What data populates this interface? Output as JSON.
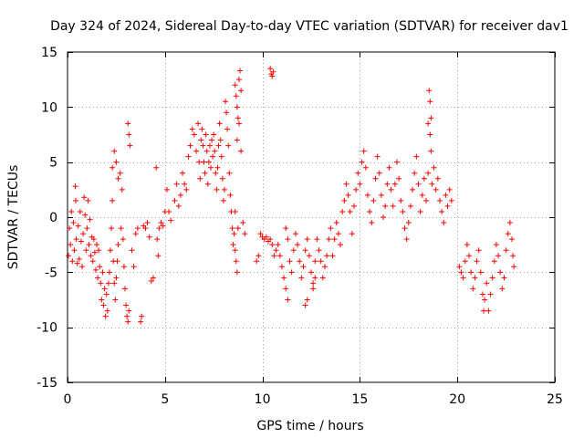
{
  "chart_data": {
    "type": "scatter",
    "title": "Day 324 of 2024, Sidereal Day-to-day VTEC variation (SDTVAR) for receiver dav1",
    "xlabel": "GPS time / hours",
    "ylabel": "SDTVAR / TECUs",
    "xlim": [
      0,
      25
    ],
    "ylim": [
      -15,
      15
    ],
    "xticks": [
      0,
      5,
      10,
      15,
      20,
      25
    ],
    "yticks": [
      -15,
      -10,
      -5,
      0,
      5,
      10,
      15
    ],
    "grid": true,
    "marker": "plus",
    "color": "#ff0000",
    "series": [
      {
        "name": "SDTVAR",
        "points": [
          [
            0.05,
            -3.5
          ],
          [
            0.1,
            -1.0
          ],
          [
            0.15,
            -2.5
          ],
          [
            0.2,
            0.5
          ],
          [
            0.25,
            -4.0
          ],
          [
            0.3,
            -0.5
          ],
          [
            0.35,
            -3.0
          ],
          [
            0.4,
            2.8
          ],
          [
            0.42,
            1.5
          ],
          [
            0.45,
            -2.0
          ],
          [
            0.5,
            -4.2
          ],
          [
            0.55,
            -0.8
          ],
          [
            0.6,
            -3.8
          ],
          [
            0.65,
            0.5
          ],
          [
            0.7,
            -2.2
          ],
          [
            0.75,
            -4.5
          ],
          [
            0.8,
            -1.5
          ],
          [
            0.85,
            1.8
          ],
          [
            0.9,
            0.2
          ],
          [
            0.95,
            -3.0
          ],
          [
            1.0,
            -1.0
          ],
          [
            1.05,
            1.5
          ],
          [
            1.1,
            -2.5
          ],
          [
            1.15,
            -0.2
          ],
          [
            1.2,
            -3.5
          ],
          [
            1.25,
            -1.8
          ],
          [
            1.3,
            -4.0
          ],
          [
            1.35,
            -2.0
          ],
          [
            1.4,
            -3.2
          ],
          [
            1.45,
            -4.8
          ],
          [
            1.5,
            -2.5
          ],
          [
            1.55,
            -5.5
          ],
          [
            1.6,
            -3.0
          ],
          [
            1.65,
            -4.5
          ],
          [
            1.7,
            -6.0
          ],
          [
            1.75,
            -7.5
          ],
          [
            1.8,
            -5.0
          ],
          [
            1.85,
            -8.0
          ],
          [
            1.9,
            -6.5
          ],
          [
            1.95,
            -9.0
          ],
          [
            2.0,
            -7.0
          ],
          [
            2.05,
            -8.5
          ],
          [
            2.1,
            -6.0
          ],
          [
            2.15,
            -5.0
          ],
          [
            2.2,
            -3.0
          ],
          [
            2.25,
            -1.0
          ],
          [
            2.3,
            1.5
          ],
          [
            2.35,
            -4.0
          ],
          [
            2.4,
            -6.0
          ],
          [
            2.45,
            -7.5
          ],
          [
            2.5,
            -5.5
          ],
          [
            2.55,
            -4.0
          ],
          [
            2.6,
            -2.5
          ],
          [
            2.3,
            4.5
          ],
          [
            2.4,
            6.0
          ],
          [
            2.5,
            5.0
          ],
          [
            2.6,
            3.5
          ],
          [
            2.7,
            4.0
          ],
          [
            2.8,
            2.5
          ],
          [
            2.75,
            -1.0
          ],
          [
            2.85,
            -2.0
          ],
          [
            2.9,
            -4.5
          ],
          [
            2.95,
            -6.5
          ],
          [
            3.0,
            -8.0
          ],
          [
            3.05,
            -9.0
          ],
          [
            3.1,
            -9.5
          ],
          [
            3.15,
            -8.5
          ],
          [
            3.1,
            8.5
          ],
          [
            3.15,
            7.5
          ],
          [
            3.2,
            6.5
          ],
          [
            3.3,
            -3.0
          ],
          [
            3.4,
            -4.5
          ],
          [
            3.5,
            -1.5
          ],
          [
            3.6,
            -1.0
          ],
          [
            3.75,
            -9.5
          ],
          [
            3.8,
            -9.0
          ],
          [
            3.9,
            -0.8
          ],
          [
            4.0,
            -1.0
          ],
          [
            4.1,
            -0.5
          ],
          [
            4.2,
            -1.8
          ],
          [
            4.3,
            -5.8
          ],
          [
            4.4,
            -5.5
          ],
          [
            4.55,
            4.5
          ],
          [
            4.6,
            -2.0
          ],
          [
            4.65,
            -3.5
          ],
          [
            4.7,
            -1.0
          ],
          [
            4.8,
            -0.5
          ],
          [
            4.9,
            -0.8
          ],
          [
            5.0,
            0.5
          ],
          [
            5.1,
            2.5
          ],
          [
            5.2,
            0.5
          ],
          [
            5.3,
            -0.3
          ],
          [
            5.5,
            1.5
          ],
          [
            5.6,
            3.0
          ],
          [
            5.7,
            1.0
          ],
          [
            5.8,
            2.0
          ],
          [
            5.9,
            4.0
          ],
          [
            6.0,
            3.0
          ],
          [
            6.1,
            2.5
          ],
          [
            6.2,
            5.5
          ],
          [
            6.3,
            6.5
          ],
          [
            6.4,
            8.0
          ],
          [
            6.5,
            7.5
          ],
          [
            6.6,
            6.0
          ],
          [
            6.7,
            8.5
          ],
          [
            6.75,
            5.0
          ],
          [
            6.8,
            3.5
          ],
          [
            6.85,
            7.0
          ],
          [
            6.9,
            8.0
          ],
          [
            6.95,
            6.5
          ],
          [
            7.0,
            5.0
          ],
          [
            7.05,
            4.0
          ],
          [
            7.1,
            7.5
          ],
          [
            7.15,
            6.0
          ],
          [
            7.2,
            3.0
          ],
          [
            7.25,
            5.0
          ],
          [
            7.3,
            6.5
          ],
          [
            7.35,
            4.5
          ],
          [
            7.4,
            7.0
          ],
          [
            7.45,
            5.5
          ],
          [
            7.5,
            7.5
          ],
          [
            7.55,
            6.0
          ],
          [
            7.6,
            4.0
          ],
          [
            7.65,
            2.5
          ],
          [
            7.7,
            4.5
          ],
          [
            7.75,
            6.5
          ],
          [
            7.8,
            8.5
          ],
          [
            7.85,
            7.0
          ],
          [
            7.9,
            5.5
          ],
          [
            7.95,
            3.5
          ],
          [
            8.0,
            1.5
          ],
          [
            8.05,
            2.5
          ],
          [
            8.1,
            10.5
          ],
          [
            8.15,
            9.5
          ],
          [
            8.2,
            8.0
          ],
          [
            8.25,
            6.5
          ],
          [
            8.3,
            4.0
          ],
          [
            8.35,
            2.0
          ],
          [
            8.4,
            0.5
          ],
          [
            8.45,
            -1.0
          ],
          [
            8.5,
            -2.5
          ],
          [
            8.55,
            -1.5
          ],
          [
            8.6,
            -3.0
          ],
          [
            8.65,
            -4.0
          ],
          [
            8.7,
            -5.0
          ],
          [
            8.6,
            12.0
          ],
          [
            8.65,
            11.0
          ],
          [
            8.7,
            10.0
          ],
          [
            8.75,
            9.0
          ],
          [
            8.8,
            12.5
          ],
          [
            8.85,
            13.3
          ],
          [
            8.9,
            11.5
          ],
          [
            8.7,
            7.0
          ],
          [
            8.8,
            8.5
          ],
          [
            8.9,
            6.0
          ],
          [
            8.6,
            0.5
          ],
          [
            8.75,
            -1.0
          ],
          [
            9.0,
            -0.5
          ],
          [
            9.1,
            -1.5
          ],
          [
            10.4,
            13.5
          ],
          [
            10.45,
            13.0
          ],
          [
            10.5,
            12.8
          ],
          [
            10.55,
            13.2
          ],
          [
            9.7,
            -4.0
          ],
          [
            9.8,
            -3.5
          ],
          [
            9.9,
            -1.5
          ],
          [
            10.0,
            -1.8
          ],
          [
            10.1,
            -2.0
          ],
          [
            10.2,
            -1.8
          ],
          [
            10.3,
            -2.2
          ],
          [
            10.4,
            -2.0
          ],
          [
            10.5,
            -2.5
          ],
          [
            10.6,
            -3.5
          ],
          [
            10.7,
            -3.0
          ],
          [
            10.8,
            -2.5
          ],
          [
            10.9,
            -3.5
          ],
          [
            11.0,
            -4.5
          ],
          [
            11.1,
            -5.5
          ],
          [
            11.2,
            -6.5
          ],
          [
            11.3,
            -7.5
          ],
          [
            11.2,
            -1.0
          ],
          [
            11.3,
            -2.0
          ],
          [
            11.4,
            -4.0
          ],
          [
            11.5,
            -5.0
          ],
          [
            11.6,
            -3.0
          ],
          [
            11.7,
            -1.5
          ],
          [
            11.8,
            -2.5
          ],
          [
            11.9,
            -4.0
          ],
          [
            12.0,
            -5.5
          ],
          [
            12.1,
            -4.5
          ],
          [
            12.2,
            -3.0
          ],
          [
            12.3,
            -2.0
          ],
          [
            12.4,
            -3.5
          ],
          [
            12.5,
            -5.0
          ],
          [
            12.6,
            -6.5
          ],
          [
            12.7,
            -4.0
          ],
          [
            12.8,
            -2.0
          ],
          [
            12.9,
            -3.0
          ],
          [
            13.0,
            -4.0
          ],
          [
            13.1,
            -5.5
          ],
          [
            13.2,
            -4.5
          ],
          [
            13.3,
            -3.5
          ],
          [
            13.4,
            -2.0
          ],
          [
            13.5,
            -1.0
          ],
          [
            12.6,
            -6.0
          ],
          [
            12.7,
            -5.5
          ],
          [
            12.2,
            -8.0
          ],
          [
            12.3,
            -7.5
          ],
          [
            13.6,
            -3.5
          ],
          [
            13.7,
            -2.0
          ],
          [
            13.8,
            -0.5
          ],
          [
            13.9,
            -1.5
          ],
          [
            14.0,
            -2.5
          ],
          [
            14.1,
            0.5
          ],
          [
            14.2,
            1.5
          ],
          [
            14.3,
            3.0
          ],
          [
            14.4,
            2.0
          ],
          [
            14.5,
            0.5
          ],
          [
            14.6,
            -1.5
          ],
          [
            14.7,
            1.0
          ],
          [
            14.8,
            2.5
          ],
          [
            14.9,
            4.0
          ],
          [
            15.0,
            3.0
          ],
          [
            15.1,
            5.0
          ],
          [
            15.2,
            6.0
          ],
          [
            15.3,
            4.5
          ],
          [
            15.4,
            2.0
          ],
          [
            15.5,
            0.5
          ],
          [
            15.6,
            -0.5
          ],
          [
            15.7,
            1.5
          ],
          [
            15.8,
            3.5
          ],
          [
            15.9,
            5.5
          ],
          [
            16.0,
            4.0
          ],
          [
            16.1,
            2.0
          ],
          [
            16.2,
            0.0
          ],
          [
            16.3,
            1.0
          ],
          [
            16.4,
            3.0
          ],
          [
            16.5,
            4.5
          ],
          [
            16.6,
            2.5
          ],
          [
            16.7,
            1.0
          ],
          [
            16.8,
            3.0
          ],
          [
            16.9,
            5.0
          ],
          [
            17.0,
            3.5
          ],
          [
            17.1,
            1.5
          ],
          [
            17.2,
            0.5
          ],
          [
            17.3,
            -1.0
          ],
          [
            17.4,
            -2.0
          ],
          [
            17.5,
            -0.5
          ],
          [
            17.6,
            1.0
          ],
          [
            17.7,
            2.5
          ],
          [
            17.8,
            4.0
          ],
          [
            17.9,
            5.5
          ],
          [
            18.0,
            3.0
          ],
          [
            18.1,
            0.5
          ],
          [
            18.2,
            2.0
          ],
          [
            18.3,
            3.5
          ],
          [
            18.4,
            1.5
          ],
          [
            18.5,
            4.0
          ],
          [
            18.55,
            11.5
          ],
          [
            18.6,
            10.5
          ],
          [
            18.65,
            9.0
          ],
          [
            18.6,
            7.5
          ],
          [
            18.65,
            6.0
          ],
          [
            18.5,
            8.5
          ],
          [
            18.7,
            3.0
          ],
          [
            18.8,
            4.5
          ],
          [
            18.9,
            2.5
          ],
          [
            19.0,
            3.5
          ],
          [
            19.1,
            1.5
          ],
          [
            19.2,
            0.5
          ],
          [
            19.3,
            -0.5
          ],
          [
            19.4,
            2.0
          ],
          [
            19.5,
            1.0
          ],
          [
            19.6,
            2.5
          ],
          [
            19.7,
            1.5
          ],
          [
            20.1,
            -4.5
          ],
          [
            20.2,
            -5.0
          ],
          [
            20.3,
            -5.5
          ],
          [
            20.4,
            -4.0
          ],
          [
            20.5,
            -2.5
          ],
          [
            20.6,
            -3.5
          ],
          [
            20.7,
            -5.0
          ],
          [
            20.8,
            -6.5
          ],
          [
            20.9,
            -5.5
          ],
          [
            21.0,
            -4.0
          ],
          [
            21.1,
            -3.0
          ],
          [
            21.2,
            -5.0
          ],
          [
            21.3,
            -7.0
          ],
          [
            21.35,
            -8.5
          ],
          [
            21.4,
            -7.5
          ],
          [
            21.5,
            -6.0
          ],
          [
            21.6,
            -8.5
          ],
          [
            21.7,
            -7.0
          ],
          [
            21.8,
            -5.5
          ],
          [
            21.9,
            -4.0
          ],
          [
            22.0,
            -2.5
          ],
          [
            22.1,
            -3.5
          ],
          [
            22.2,
            -5.0
          ],
          [
            22.3,
            -6.5
          ],
          [
            22.4,
            -5.5
          ],
          [
            22.5,
            -3.0
          ],
          [
            22.6,
            -1.5
          ],
          [
            22.7,
            -0.5
          ],
          [
            22.8,
            -2.0
          ],
          [
            22.85,
            -3.5
          ],
          [
            22.9,
            -4.5
          ]
        ]
      }
    ]
  }
}
